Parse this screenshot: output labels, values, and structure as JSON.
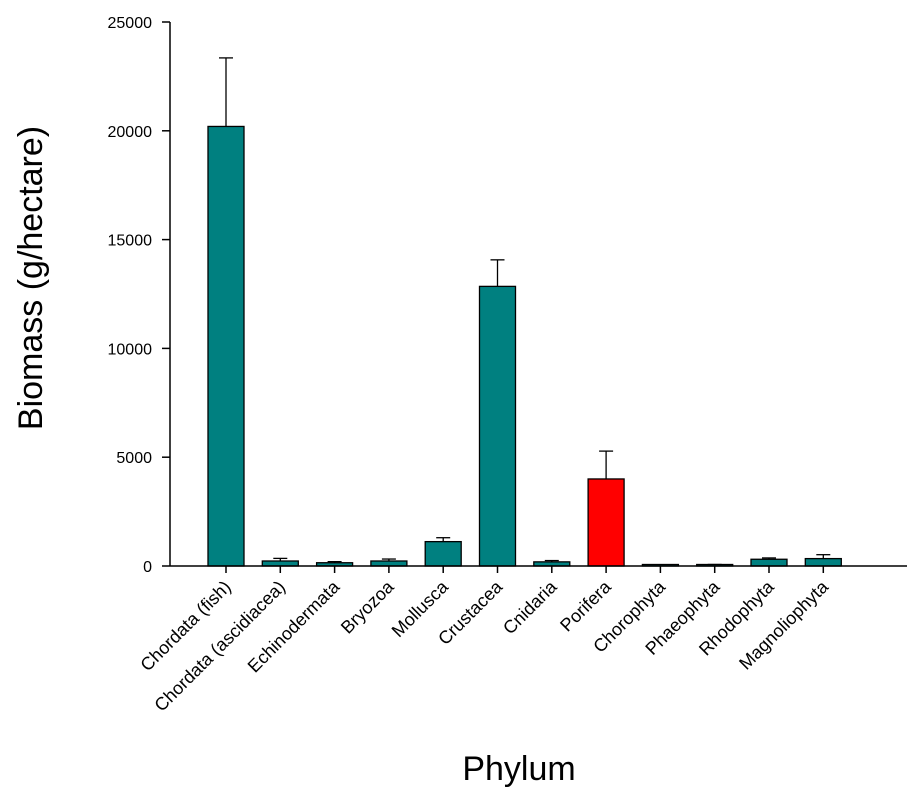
{
  "chart_data": {
    "type": "bar",
    "title": "",
    "xlabel": "Phylum",
    "ylabel": "Biomass (g/hectare)",
    "ylim": [
      0,
      25000
    ],
    "yticks": [
      0,
      5000,
      10000,
      15000,
      20000,
      25000
    ],
    "grid": false,
    "categories": [
      "Chordata (fish)",
      "Chordata (ascidiacea)",
      "Echinodermata",
      "Bryozoa",
      "Mollusca",
      "Crustacea",
      "Cnidaria",
      "Porifera",
      "Chorophyta",
      "Phaeophyta",
      "Rhodophyta",
      "Magnoliophyta"
    ],
    "values": [
      20200,
      230,
      150,
      230,
      1120,
      12850,
      190,
      4000,
      20,
      50,
      310,
      340
    ],
    "errors": [
      3150,
      120,
      50,
      90,
      180,
      1220,
      60,
      1280,
      10,
      20,
      60,
      180
    ],
    "colors": [
      "#008080",
      "#008080",
      "#008080",
      "#008080",
      "#008080",
      "#008080",
      "#008080",
      "#ff0000",
      "#008080",
      "#008080",
      "#008080",
      "#008080"
    ]
  }
}
